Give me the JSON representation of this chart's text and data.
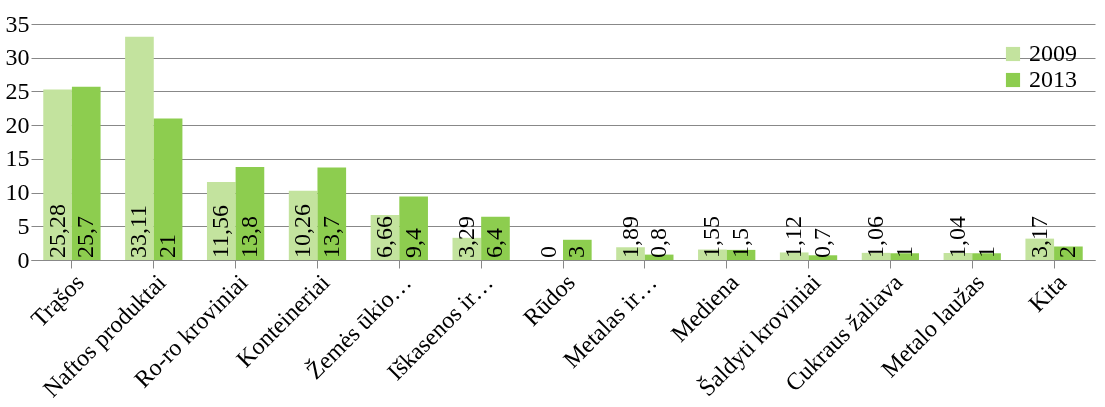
{
  "chart_data": {
    "type": "bar",
    "categories": [
      "Trąšos",
      "Naftos produktai",
      "Ro-ro kroviniai",
      "Konteineriai",
      "Žemės ūkio…",
      "Iškasenos ir…",
      "Rūdos",
      "Metalas ir…",
      "Mediena",
      "Šaldyti kroviniai",
      "Cukraus žaliava",
      "Metalo laužas",
      "Kita"
    ],
    "series": [
      {
        "name": "2009",
        "color": "#c3e39e",
        "values": [
          25.28,
          33.11,
          11.56,
          10.26,
          6.66,
          3.29,
          0,
          1.89,
          1.55,
          1.12,
          1.06,
          1.04,
          3.17
        ],
        "value_labels": [
          "25,28",
          "33,11",
          "11,56",
          "10,26",
          "6,66",
          "3,29",
          "0",
          "1,89",
          "1,55",
          "1,12",
          "1,06",
          "1,04",
          "3,17"
        ]
      },
      {
        "name": "2013",
        "color": "#8dcd4f",
        "values": [
          25.7,
          21,
          13.8,
          13.7,
          9.4,
          6.4,
          3,
          0.8,
          1.5,
          0.7,
          1,
          1,
          2
        ],
        "value_labels": [
          "25,7",
          "21",
          "13,8",
          "13,7",
          "9,4",
          "6,4",
          "3",
          "0,8",
          "1,5",
          "0,7",
          "1",
          "1",
          "2"
        ]
      }
    ],
    "ylim": [
      0,
      35
    ],
    "yticks": [
      0,
      5,
      10,
      15,
      20,
      25,
      30,
      35
    ],
    "grid": "y",
    "legend": "top right"
  }
}
